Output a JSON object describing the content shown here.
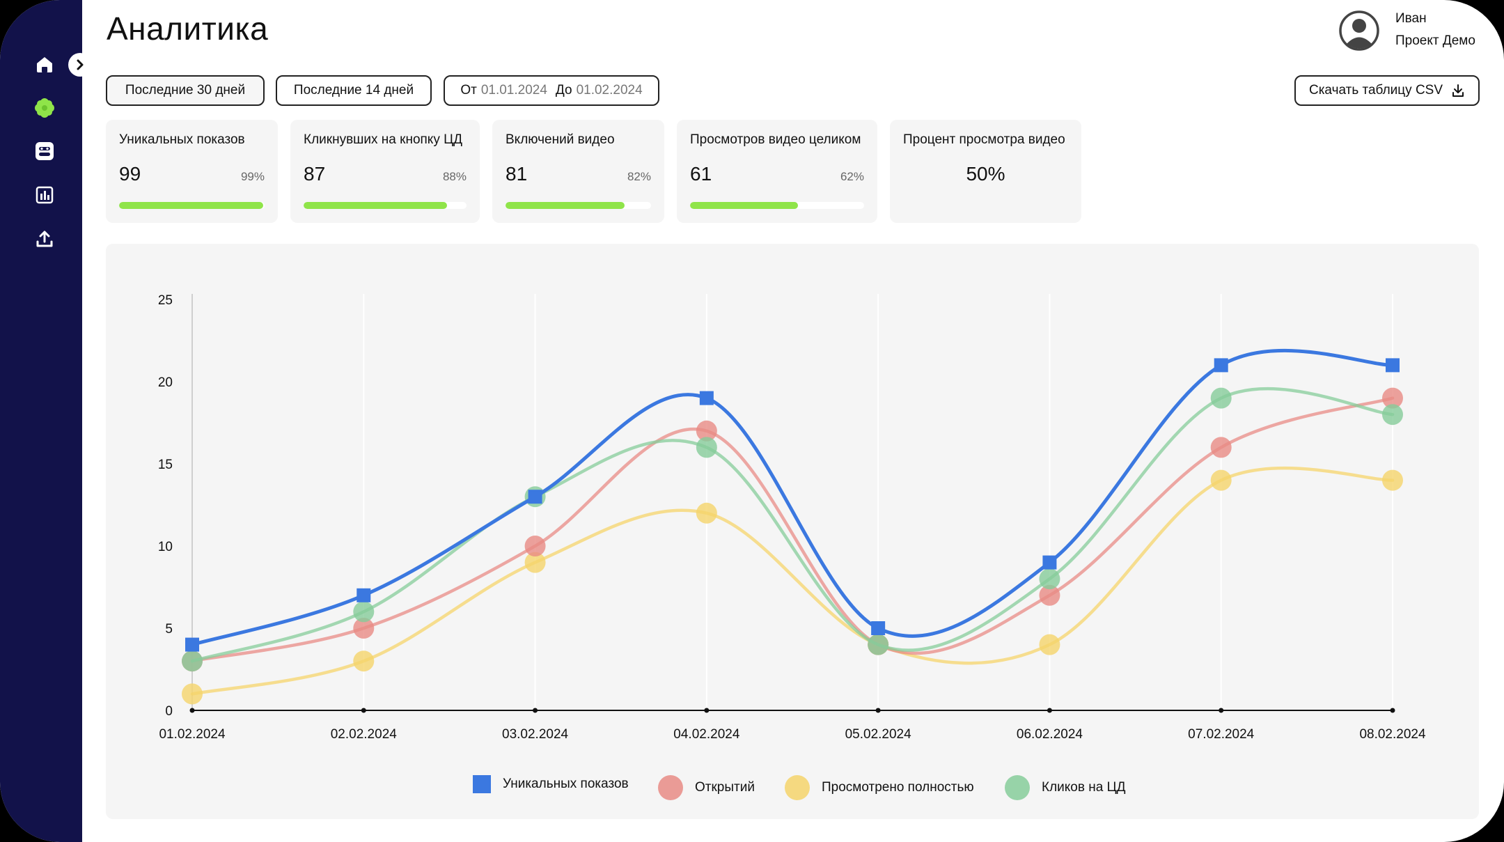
{
  "header": {
    "title": "Аналитика"
  },
  "user": {
    "name": "Иван",
    "project": "Проект Демо"
  },
  "sidebar": {
    "items": [
      {
        "icon": "home-icon"
      },
      {
        "icon": "flower-icon"
      },
      {
        "icon": "face-scan-icon"
      },
      {
        "icon": "report-icon"
      },
      {
        "icon": "upload-icon"
      }
    ],
    "collapse_icon": "chevron-right-icon",
    "accent": "#8fe449"
  },
  "filters": {
    "last30": "Последние 30 дней",
    "last14": "Последние 14 дней",
    "from_label": "От",
    "from_value": "01.01.2024",
    "to_label": "До",
    "to_value": "01.02.2024",
    "csv": "Скачать таблицу CSV"
  },
  "stats": [
    {
      "title": "Уникальных показов",
      "value": "99",
      "pct": "99%",
      "fill": 0.99
    },
    {
      "title": "Кликнувших на кнопку ЦД",
      "value": "87",
      "pct": "88%",
      "fill": 0.88
    },
    {
      "title": "Включений видео",
      "value": "81",
      "pct": "82%",
      "fill": 0.82
    },
    {
      "title": "Просмотров видео целиком",
      "value": "61",
      "pct": "62%",
      "fill": 0.62
    },
    {
      "title": "Процент просмотра видео",
      "value": "50%"
    }
  ],
  "chart_data": {
    "type": "line",
    "categories": [
      "01.02.2024",
      "02.02.2024",
      "03.02.2024",
      "04.02.2024",
      "05.02.2024",
      "06.02.2024",
      "07.02.2024",
      "08.02.2024"
    ],
    "ylim": [
      0,
      25
    ],
    "yticks": [
      "0",
      "5",
      "10",
      "15",
      "20",
      "25"
    ],
    "series": [
      {
        "name": "Уникальных показов",
        "values": [
          4,
          7,
          13,
          19,
          5,
          9,
          21,
          21
        ],
        "color": "#3b78e0",
        "marker": "square"
      },
      {
        "name": "Открытий",
        "values": [
          3,
          5,
          10,
          17,
          4,
          7,
          16,
          19
        ],
        "color": "#e88b85",
        "marker": "circle"
      },
      {
        "name": "Просмотрено полностью",
        "values": [
          1,
          3,
          9,
          12,
          4,
          4,
          14,
          14
        ],
        "color": "#f5d46b",
        "marker": "circle"
      },
      {
        "name": "Кликов на ЦД",
        "values": [
          3,
          6,
          13,
          16,
          4,
          8,
          19,
          18
        ],
        "color": "#86cc9a",
        "marker": "circle"
      }
    ]
  }
}
